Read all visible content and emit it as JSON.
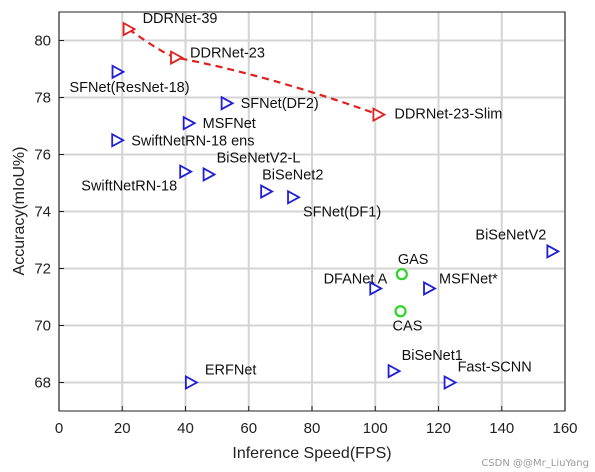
{
  "chart_data": {
    "type": "scatter",
    "title": "",
    "xlabel": "Inference Speed(FPS)",
    "ylabel": "Accuracy(mIoU%)",
    "xlim": [
      0,
      160
    ],
    "ylim": [
      67,
      81
    ],
    "xticks": [
      0,
      20,
      40,
      60,
      80,
      100,
      120,
      140,
      160
    ],
    "yticks": [
      68,
      70,
      72,
      74,
      76,
      78,
      80
    ],
    "grid": true,
    "colors": {
      "blue": "#1f1fd6",
      "red": "#e0201e",
      "green": "#2bd62b"
    },
    "series": [
      {
        "color": "blue",
        "marker": "triangle-right",
        "points": [
          {
            "label": "SFNet(ResNet-18)",
            "x": 18.5,
            "y": 78.9
          },
          {
            "label": "SFNet(DF2)",
            "x": 53,
            "y": 77.8
          },
          {
            "label": "MSFNet",
            "x": 41,
            "y": 77.1
          },
          {
            "label": "SwiftNetRN-18 ens",
            "x": 18.4,
            "y": 76.5
          },
          {
            "label": "SwiftNetRN-18",
            "x": 39.9,
            "y": 75.4
          },
          {
            "label": "BiSeNetV2-L",
            "x": 47.3,
            "y": 75.3
          },
          {
            "label": "BiSeNet2",
            "x": 65.5,
            "y": 74.7
          },
          {
            "label": "SFNet(DF1)",
            "x": 74,
            "y": 74.5
          },
          {
            "label": "BiSeNetV2",
            "x": 156,
            "y": 72.6
          },
          {
            "label": "DFANet A",
            "x": 100,
            "y": 71.3
          },
          {
            "label": "MSFNet*",
            "x": 117,
            "y": 71.3
          },
          {
            "label": "ERFNet",
            "x": 41.7,
            "y": 68.0
          },
          {
            "label": "BiSeNet1",
            "x": 105.8,
            "y": 68.4
          },
          {
            "label": "Fast-SCNN",
            "x": 123.5,
            "y": 68.0
          }
        ]
      },
      {
        "color": "red",
        "marker": "triangle-right",
        "line": "dashed",
        "points": [
          {
            "label": "DDRNet-39",
            "x": 22,
            "y": 80.4
          },
          {
            "label": "DDRNet-23",
            "x": 37,
            "y": 79.4
          },
          {
            "label": "DDRNet-23-Slim",
            "x": 101,
            "y": 77.4
          }
        ]
      },
      {
        "color": "green",
        "marker": "circle",
        "points": [
          {
            "label": "GAS",
            "x": 108.4,
            "y": 71.8
          },
          {
            "label": "CAS",
            "x": 108,
            "y": 70.5
          }
        ]
      }
    ]
  },
  "watermark": "CSDN @@Mr_LiuYang"
}
